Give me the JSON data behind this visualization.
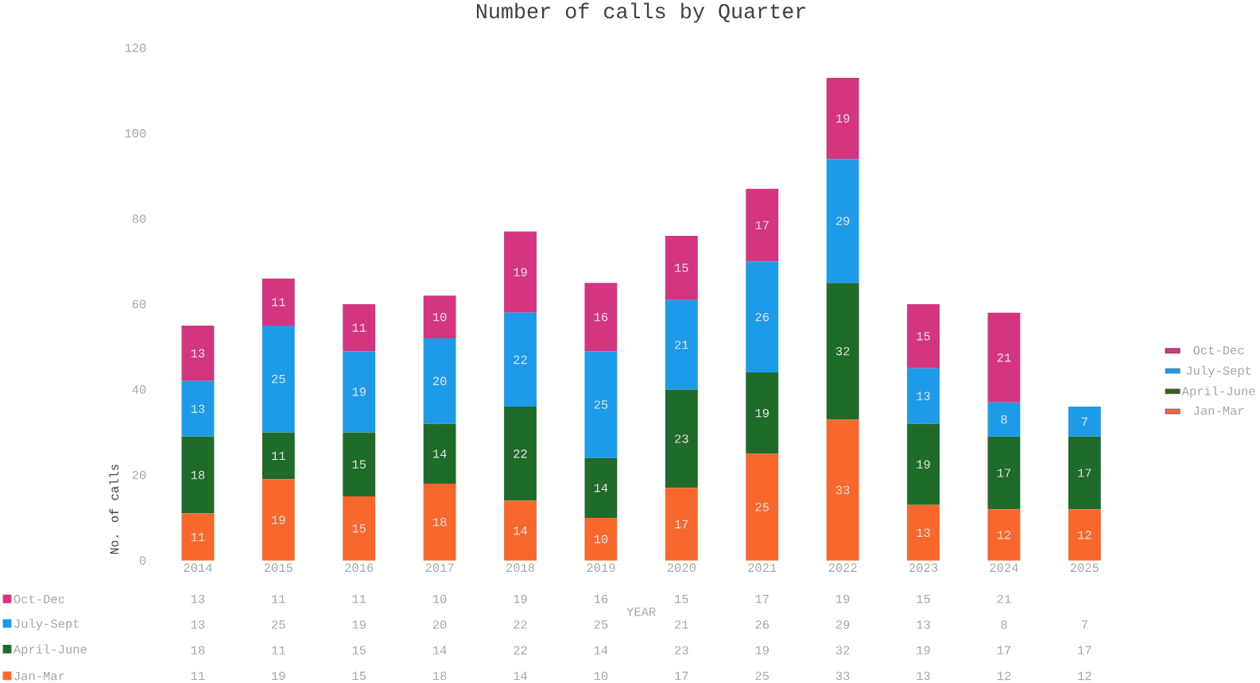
{
  "chart_data": {
    "type": "bar",
    "title": "Number of calls by Quarter",
    "xlabel": "YEAR",
    "ylabel": "No. of calls",
    "stacked": true,
    "data_labels": true,
    "legend": "right",
    "categories": [
      "2014",
      "2015",
      "2016",
      "2017",
      "2018",
      "2019",
      "2020",
      "2021",
      "2022",
      "2023",
      "2024",
      "2025"
    ],
    "series": [
      {
        "name": "Jan-Mar",
        "color": "#f8672b",
        "values": [
          11,
          19,
          15,
          18,
          14,
          10,
          17,
          25,
          33,
          13,
          12,
          12
        ]
      },
      {
        "name": "April-June",
        "color": "#1f6b2a",
        "values": [
          18,
          11,
          15,
          14,
          22,
          14,
          23,
          19,
          32,
          19,
          17,
          17
        ]
      },
      {
        "name": "July-Sept",
        "color": "#1e9be8",
        "values": [
          13,
          25,
          19,
          20,
          22,
          25,
          21,
          26,
          29,
          13,
          8,
          7
        ]
      },
      {
        "name": "Oct-Dec",
        "color": "#d4357f",
        "values": [
          13,
          11,
          11,
          10,
          19,
          16,
          15,
          17,
          19,
          15,
          21,
          null
        ]
      }
    ],
    "annotations": [
      "13",
      "11",
      "11",
      "10",
      "19",
      "16",
      "15",
      "17",
      "19",
      "15",
      "21",
      "13",
      "25",
      "19",
      "20",
      "22",
      "25",
      "21",
      "26",
      "29",
      "13",
      "8",
      "7",
      "18",
      "11",
      "15",
      "14",
      "22",
      "14",
      "23",
      "19",
      "32",
      "19",
      "17",
      "17",
      "11",
      "19",
      "15",
      "18",
      "14",
      "10",
      "17",
      "25",
      "33",
      "13",
      "12",
      "12"
    ],
    "ylim": [
      0,
      120
    ],
    "yticks": [
      0,
      20,
      40,
      60,
      80,
      100,
      120
    ]
  }
}
